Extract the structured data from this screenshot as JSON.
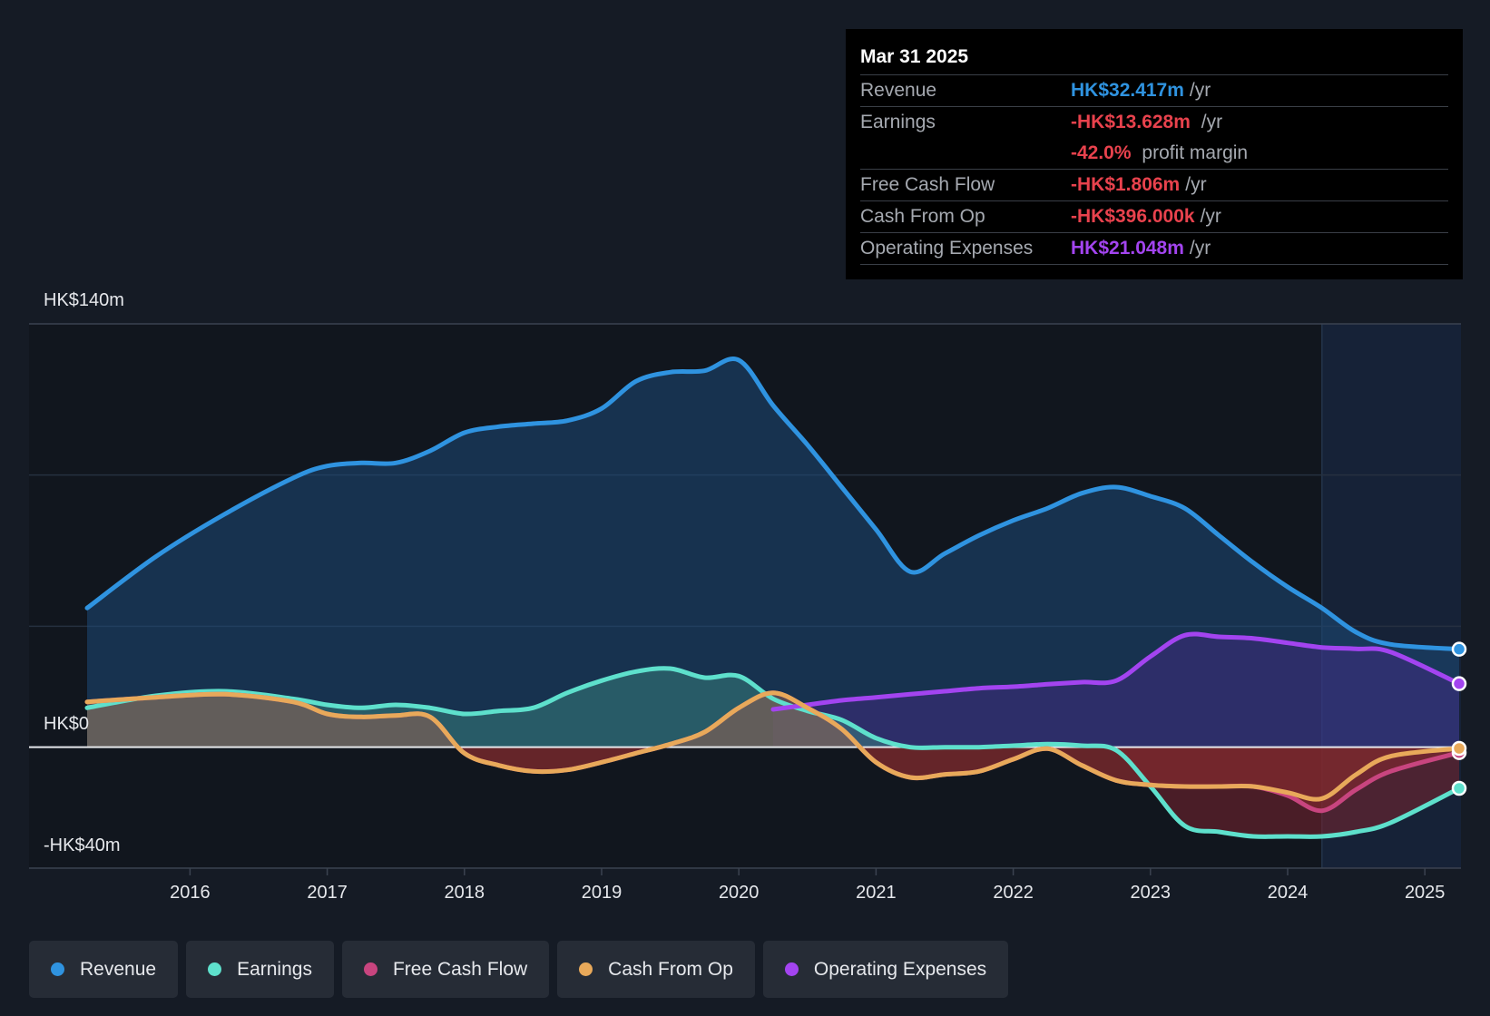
{
  "tooltip": {
    "date": "Mar 31 2025",
    "rows": {
      "revenue": {
        "label": "Revenue",
        "value": "HK$32.417m",
        "unit": "/yr",
        "color": "#2f93e0"
      },
      "earnings": {
        "label": "Earnings",
        "value": "-HK$13.628m",
        "unit": "/yr",
        "color": "#e8424d"
      },
      "margin": {
        "value": "-42.0%",
        "unit": "profit margin",
        "color": "#e8424d"
      },
      "fcf": {
        "label": "Free Cash Flow",
        "value": "-HK$1.806m",
        "unit": "/yr",
        "color": "#e8424d"
      },
      "cfo": {
        "label": "Cash From Op",
        "value": "-HK$396.000k",
        "unit": "/yr",
        "color": "#e8424d"
      },
      "opex": {
        "label": "Operating Expenses",
        "value": "HK$21.048m",
        "unit": "/yr",
        "color": "#a344f0"
      }
    }
  },
  "legend": {
    "revenue": {
      "label": "Revenue",
      "color": "#2f93e0"
    },
    "earnings": {
      "label": "Earnings",
      "color": "#5ee0cc"
    },
    "fcf": {
      "label": "Free Cash Flow",
      "color": "#c8457f"
    },
    "cfo": {
      "label": "Cash From Op",
      "color": "#e8a95a"
    },
    "opex": {
      "label": "Operating Expenses",
      "color": "#a344f0"
    }
  },
  "chart_data": {
    "type": "line",
    "y_tick_labels": {
      "top": "HK$140m",
      "zero": "HK$0",
      "bottom": "-HK$40m"
    },
    "ylim": [
      -40,
      140
    ],
    "xlim": [
      2015.25,
      2025.25
    ],
    "x_ticks": [
      2016,
      2017,
      2018,
      2019,
      2020,
      2021,
      2022,
      2023,
      2024,
      2025
    ],
    "forecast_shade_start": 2024.25,
    "series": [
      {
        "name": "Revenue",
        "key": "revenue",
        "color": "#2f93e0",
        "points": [
          [
            2015.25,
            46
          ],
          [
            2015.75,
            63
          ],
          [
            2016.25,
            77
          ],
          [
            2016.75,
            89
          ],
          [
            2017.0,
            93
          ],
          [
            2017.25,
            94
          ],
          [
            2017.5,
            94
          ],
          [
            2017.75,
            98
          ],
          [
            2018.0,
            104
          ],
          [
            2018.25,
            106
          ],
          [
            2018.5,
            107
          ],
          [
            2018.75,
            108
          ],
          [
            2019.0,
            112
          ],
          [
            2019.25,
            121
          ],
          [
            2019.5,
            124
          ],
          [
            2019.75,
            124.5
          ],
          [
            2020.0,
            128
          ],
          [
            2020.25,
            113
          ],
          [
            2020.5,
            100
          ],
          [
            2020.75,
            86
          ],
          [
            2021.0,
            72
          ],
          [
            2021.25,
            58
          ],
          [
            2021.5,
            64
          ],
          [
            2021.75,
            70
          ],
          [
            2022.0,
            75
          ],
          [
            2022.25,
            79
          ],
          [
            2022.5,
            84
          ],
          [
            2022.75,
            86
          ],
          [
            2023.0,
            83
          ],
          [
            2023.25,
            79
          ],
          [
            2023.5,
            70
          ],
          [
            2023.75,
            61
          ],
          [
            2024.0,
            53
          ],
          [
            2024.25,
            46
          ],
          [
            2024.5,
            38
          ],
          [
            2024.75,
            34
          ],
          [
            2025.25,
            32.4
          ]
        ]
      },
      {
        "name": "Earnings",
        "key": "earnings",
        "color": "#5ee0cc",
        "points": [
          [
            2015.25,
            13
          ],
          [
            2015.75,
            17
          ],
          [
            2016.25,
            18.5
          ],
          [
            2016.75,
            16
          ],
          [
            2017.0,
            14
          ],
          [
            2017.25,
            13
          ],
          [
            2017.5,
            14
          ],
          [
            2017.75,
            13
          ],
          [
            2018.0,
            11
          ],
          [
            2018.25,
            12
          ],
          [
            2018.5,
            13
          ],
          [
            2018.75,
            18
          ],
          [
            2019.0,
            22
          ],
          [
            2019.25,
            25
          ],
          [
            2019.5,
            26
          ],
          [
            2019.75,
            23
          ],
          [
            2020.0,
            23.5
          ],
          [
            2020.25,
            16
          ],
          [
            2020.5,
            12
          ],
          [
            2020.75,
            9
          ],
          [
            2021.0,
            3
          ],
          [
            2021.25,
            0
          ],
          [
            2021.5,
            0
          ],
          [
            2021.75,
            0
          ],
          [
            2022.0,
            0.5
          ],
          [
            2022.25,
            1
          ],
          [
            2022.5,
            0.5
          ],
          [
            2022.75,
            -1
          ],
          [
            2023.0,
            -13
          ],
          [
            2023.25,
            -26
          ],
          [
            2023.5,
            -28
          ],
          [
            2023.75,
            -29.5
          ],
          [
            2024.0,
            -29.5
          ],
          [
            2024.25,
            -29.5
          ],
          [
            2024.5,
            -28
          ],
          [
            2024.75,
            -25
          ],
          [
            2025.25,
            -13.6
          ]
        ]
      },
      {
        "name": "Free Cash Flow",
        "key": "fcf",
        "color": "#c8457f",
        "points": [
          [
            2015.25,
            15
          ],
          [
            2015.75,
            16.5
          ],
          [
            2016.25,
            17.5
          ],
          [
            2016.75,
            15
          ],
          [
            2017.0,
            11
          ],
          [
            2017.25,
            10
          ],
          [
            2017.5,
            10.5
          ],
          [
            2017.75,
            10
          ],
          [
            2018.0,
            -2
          ],
          [
            2018.25,
            -6
          ],
          [
            2018.5,
            -8
          ],
          [
            2018.75,
            -7.5
          ],
          [
            2019.0,
            -5
          ],
          [
            2019.25,
            -2
          ],
          [
            2019.5,
            1
          ],
          [
            2019.75,
            5
          ],
          [
            2020.0,
            13
          ],
          [
            2020.25,
            18
          ],
          [
            2020.5,
            13
          ],
          [
            2020.75,
            6
          ],
          [
            2021.0,
            -5
          ],
          [
            2021.25,
            -10
          ],
          [
            2021.5,
            -9
          ],
          [
            2021.75,
            -8
          ],
          [
            2022.0,
            -4
          ],
          [
            2022.25,
            -0.5
          ],
          [
            2022.5,
            -6
          ],
          [
            2022.75,
            -11
          ],
          [
            2023.0,
            -12.5
          ],
          [
            2023.25,
            -13
          ],
          [
            2023.5,
            -13
          ],
          [
            2023.75,
            -13
          ],
          [
            2024.0,
            -16
          ],
          [
            2024.25,
            -21
          ],
          [
            2024.5,
            -14
          ],
          [
            2024.75,
            -8
          ],
          [
            2025.25,
            -1.8
          ]
        ]
      },
      {
        "name": "Cash From Op",
        "key": "cfo",
        "color": "#e8a95a",
        "points": [
          [
            2015.25,
            15
          ],
          [
            2015.75,
            16.5
          ],
          [
            2016.25,
            17.5
          ],
          [
            2016.75,
            15
          ],
          [
            2017.0,
            11
          ],
          [
            2017.25,
            10
          ],
          [
            2017.5,
            10.5
          ],
          [
            2017.75,
            10
          ],
          [
            2018.0,
            -2
          ],
          [
            2018.25,
            -6
          ],
          [
            2018.5,
            -8
          ],
          [
            2018.75,
            -7.5
          ],
          [
            2019.0,
            -5
          ],
          [
            2019.25,
            -2
          ],
          [
            2019.5,
            1
          ],
          [
            2019.75,
            5
          ],
          [
            2020.0,
            13
          ],
          [
            2020.25,
            18
          ],
          [
            2020.5,
            13
          ],
          [
            2020.75,
            6
          ],
          [
            2021.0,
            -5
          ],
          [
            2021.25,
            -10
          ],
          [
            2021.5,
            -9
          ],
          [
            2021.75,
            -8
          ],
          [
            2022.0,
            -4
          ],
          [
            2022.25,
            -0.5
          ],
          [
            2022.5,
            -6
          ],
          [
            2022.75,
            -11
          ],
          [
            2023.0,
            -12.5
          ],
          [
            2023.25,
            -13
          ],
          [
            2023.5,
            -13
          ],
          [
            2023.75,
            -13
          ],
          [
            2024.0,
            -15
          ],
          [
            2024.25,
            -17
          ],
          [
            2024.5,
            -9
          ],
          [
            2024.75,
            -3
          ],
          [
            2025.25,
            -0.4
          ]
        ]
      },
      {
        "name": "Operating Expenses",
        "key": "opex",
        "color": "#a344f0",
        "points": [
          [
            2020.25,
            12.5
          ],
          [
            2020.5,
            14
          ],
          [
            2020.75,
            15.5
          ],
          [
            2021.0,
            16.5
          ],
          [
            2021.25,
            17.5
          ],
          [
            2021.5,
            18.5
          ],
          [
            2021.75,
            19.5
          ],
          [
            2022.0,
            20
          ],
          [
            2022.25,
            20.8
          ],
          [
            2022.5,
            21.5
          ],
          [
            2022.75,
            22
          ],
          [
            2023.0,
            30
          ],
          [
            2023.25,
            37
          ],
          [
            2023.5,
            36.5
          ],
          [
            2023.75,
            36
          ],
          [
            2024.0,
            34.5
          ],
          [
            2024.25,
            33
          ],
          [
            2024.5,
            32.5
          ],
          [
            2024.75,
            31.5
          ],
          [
            2025.25,
            21.0
          ]
        ]
      }
    ]
  }
}
